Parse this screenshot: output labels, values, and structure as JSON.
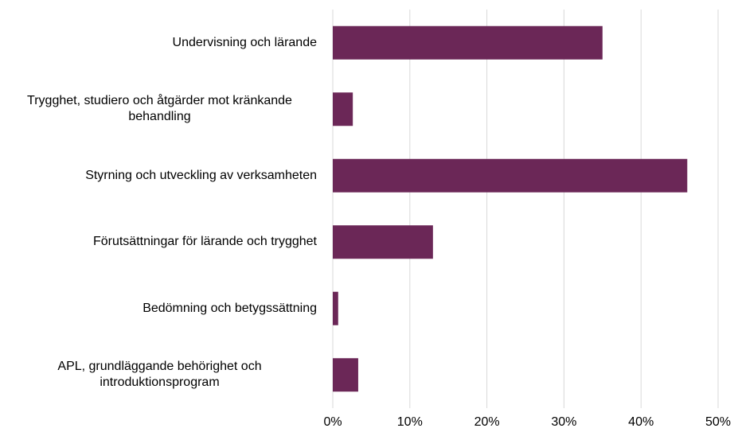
{
  "chart_data": {
    "type": "bar",
    "orientation": "horizontal",
    "categories": [
      "Undervisning och lärande",
      "Trygghet, studiero och åtgärder mot kränkande behandling",
      "Styrning och utveckling av verksamheten",
      "Förutsättningar för lärande och trygghet",
      "Bedömning och betygssättning",
      "APL, grundläggande behörighet och introduktionsprogram"
    ],
    "values": [
      35,
      2.6,
      46,
      13,
      0.7,
      3.3
    ],
    "color": "#6b2757",
    "xlim": [
      0,
      50
    ],
    "xticks": [
      {
        "value": 0,
        "label": "0%"
      },
      {
        "value": 10,
        "label": "10%"
      },
      {
        "value": 20,
        "label": "20%"
      },
      {
        "value": 30,
        "label": "30%"
      },
      {
        "value": 40,
        "label": "40%"
      },
      {
        "value": 50,
        "label": "50%"
      }
    ],
    "grid": true
  }
}
